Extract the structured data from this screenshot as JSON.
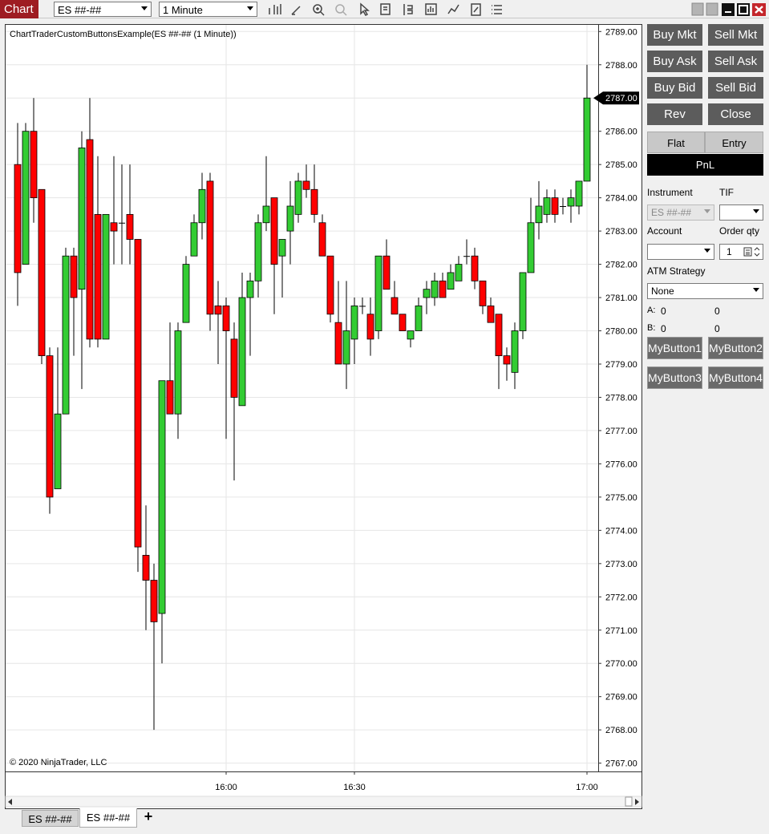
{
  "toolbar": {
    "title": "Chart",
    "instrument": "ES ##-##",
    "interval": "1 Minute"
  },
  "chart_data": {
    "type": "candlestick",
    "title": "ChartTraderCustomButtonsExample(ES ##-## (1 Minute))",
    "copyright": "© 2020 NinjaTrader, LLC",
    "categories": [
      null,
      null,
      null,
      null,
      null,
      null,
      null,
      null,
      null,
      null,
      null,
      null,
      null,
      null,
      null,
      null,
      null,
      null,
      null,
      null,
      null,
      null,
      null,
      null,
      null,
      null,
      "16:00",
      null,
      null,
      null,
      null,
      null,
      null,
      null,
      null,
      null,
      null,
      null,
      null,
      null,
      null,
      null,
      "16:30",
      null,
      null,
      null,
      null,
      null,
      null,
      null,
      null,
      null,
      null,
      null,
      null,
      null,
      null,
      null,
      null,
      null,
      null,
      null,
      null,
      null,
      null,
      null,
      null,
      null,
      null,
      null,
      null,
      "17:00"
    ],
    "open": [
      2785.0,
      2782.0,
      2786.0,
      2784.25,
      2779.25,
      2775.25,
      2777.5,
      2782.25,
      2781.25,
      2785.75,
      2783.5,
      2779.75,
      2783.25,
      2783.25,
      2783.5,
      2782.75,
      2773.25,
      2772.5,
      2771.5,
      2778.5,
      2777.5,
      2780.25,
      2782.25,
      2783.25,
      2784.5,
      2780.75,
      2780.75,
      2779.75,
      2777.75,
      2781.0,
      2781.5,
      2783.25,
      2784.0,
      2782.25,
      2783.0,
      2783.5,
      2784.5,
      2784.25,
      2783.25,
      2782.25,
      2780.25,
      2779.0,
      2779.75,
      2780.75,
      2780.5,
      2780.0,
      2782.25,
      2781.0,
      2780.5,
      2779.75,
      2780.0,
      2781.0,
      2781.0,
      2781.5,
      2781.25,
      2781.5,
      2782.25,
      2782.25,
      2781.5,
      2780.75,
      2780.5,
      2779.25,
      2778.75,
      2780.0,
      2781.75,
      2783.25,
      2783.5,
      2784.0,
      2783.75,
      2783.75,
      2783.75,
      2784.5
    ],
    "high": [
      2786.25,
      2786.25,
      2787.0,
      2784.25,
      2779.5,
      2779.5,
      2782.5,
      2782.5,
      2786.0,
      2787.0,
      2785.25,
      2783.5,
      2785.25,
      2785.0,
      2785.0,
      2782.75,
      2774.75,
      2773.0,
      2778.5,
      2780.25,
      2780.25,
      2782.25,
      2783.5,
      2784.75,
      2784.75,
      2781.5,
      2781.0,
      2780.25,
      2781.75,
      2781.75,
      2783.5,
      2785.25,
      2784.0,
      2782.75,
      2784.5,
      2784.75,
      2785.0,
      2785.0,
      2783.5,
      2782.25,
      2781.5,
      2781.5,
      2781.0,
      2781.0,
      2781.0,
      2782.25,
      2782.75,
      2781.5,
      2780.5,
      2780.0,
      2781.0,
      2781.5,
      2781.75,
      2781.75,
      2782.0,
      2782.25,
      2782.75,
      2782.5,
      2781.5,
      2781.0,
      2780.5,
      2779.5,
      2780.25,
      2781.75,
      2784.0,
      2784.5,
      2784.25,
      2784.25,
      2784.0,
      2784.25,
      2784.5,
      2788.0
    ],
    "low": [
      2780.75,
      2782.0,
      2783.25,
      2779.0,
      2774.5,
      2775.25,
      2777.5,
      2779.25,
      2778.25,
      2779.5,
      2779.5,
      2779.75,
      2782.0,
      2782.0,
      2782.0,
      2772.75,
      2771.0,
      2768.0,
      2770.0,
      2777.5,
      2776.75,
      2780.25,
      2782.25,
      2782.75,
      2780.0,
      2779.0,
      2776.75,
      2775.5,
      2777.75,
      2779.25,
      2781.0,
      2783.0,
      2780.5,
      2781.0,
      2782.0,
      2783.25,
      2784.0,
      2783.25,
      2782.25,
      2780.25,
      2779.0,
      2778.25,
      2779.0,
      2780.5,
      2779.25,
      2779.75,
      2781.25,
      2780.5,
      2780.0,
      2779.5,
      2780.0,
      2780.5,
      2780.75,
      2781.0,
      2781.25,
      2781.5,
      2782.0,
      2781.25,
      2780.5,
      2780.25,
      2778.25,
      2778.5,
      2778.25,
      2779.75,
      2781.75,
      2782.75,
      2783.25,
      2783.25,
      2783.5,
      2783.25,
      2783.5,
      2784.5
    ],
    "close": [
      2781.75,
      2786.0,
      2784.0,
      2779.25,
      2775.0,
      2777.5,
      2782.25,
      2781.0,
      2785.5,
      2779.75,
      2779.75,
      2783.5,
      2783.0,
      2783.25,
      2782.75,
      2773.5,
      2772.5,
      2771.25,
      2778.5,
      2777.5,
      2780.0,
      2782.0,
      2783.25,
      2784.25,
      2780.5,
      2780.5,
      2780.0,
      2778.0,
      2781.0,
      2781.5,
      2783.25,
      2783.75,
      2782.0,
      2782.75,
      2783.75,
      2784.5,
      2784.25,
      2783.5,
      2782.25,
      2780.5,
      2779.0,
      2780.0,
      2780.75,
      2780.75,
      2779.75,
      2782.25,
      2781.25,
      2780.5,
      2780.0,
      2780.0,
      2780.75,
      2781.25,
      2781.5,
      2781.0,
      2781.75,
      2782.0,
      2782.25,
      2781.5,
      2780.75,
      2780.25,
      2779.25,
      2779.0,
      2780.0,
      2781.75,
      2783.25,
      2783.75,
      2784.0,
      2783.5,
      2783.75,
      2784.0,
      2784.5,
      2787.0
    ],
    "ylim": [
      2766.75,
      2789.2
    ],
    "yticks": [
      {
        "value": 2767,
        "label": "2767.00"
      },
      {
        "value": 2768,
        "label": "2768.00"
      },
      {
        "value": 2769,
        "label": "2769.00"
      },
      {
        "value": 2770,
        "label": "2770.00"
      },
      {
        "value": 2771,
        "label": "2771.00"
      },
      {
        "value": 2772,
        "label": "2772.00"
      },
      {
        "value": 2773,
        "label": "2773.00"
      },
      {
        "value": 2774,
        "label": "2774.00"
      },
      {
        "value": 2775,
        "label": "2775.00"
      },
      {
        "value": 2776,
        "label": "2776.00"
      },
      {
        "value": 2777,
        "label": "2777.00"
      },
      {
        "value": 2778,
        "label": "2778.00"
      },
      {
        "value": 2779,
        "label": "2779.00"
      },
      {
        "value": 2780,
        "label": "2780.00"
      },
      {
        "value": 2781,
        "label": "2781.00"
      },
      {
        "value": 2782,
        "label": "2782.00"
      },
      {
        "value": 2783,
        "label": "2783.00"
      },
      {
        "value": 2784,
        "label": "2784.00"
      },
      {
        "value": 2785,
        "label": "2785.00"
      },
      {
        "value": 2786,
        "label": "2786.00"
      },
      {
        "value": 2787,
        "label": "2787.00"
      },
      {
        "value": 2788,
        "label": "2788.00"
      },
      {
        "value": 2789,
        "label": "2789.00"
      }
    ],
    "last_price": {
      "value": 2787,
      "label": "2787.00"
    },
    "up_color": "#33cc33",
    "down_color": "#ff0000",
    "grid": true
  },
  "chart_trader": {
    "buttons": [
      "Buy Mkt",
      "Sell Mkt",
      "Buy Ask",
      "Sell Ask",
      "Buy Bid",
      "Sell Bid",
      "Rev",
      "Close"
    ],
    "tabs": [
      "Flat",
      "Entry"
    ],
    "pnl": "PnL",
    "instrument_label": "Instrument",
    "tif_label": "TIF",
    "instrument_value": "ES ##-##",
    "account_label": "Account",
    "order_qty_label": "Order qty",
    "order_qty": 1,
    "atm_label": "ATM Strategy",
    "atm_value": "None",
    "a_label": "A:",
    "a_values": [
      0,
      0
    ],
    "b_label": "B:",
    "b_values": [
      0,
      0
    ],
    "custom_buttons": [
      "MyButton1",
      "MyButton2",
      "MyButton3",
      "MyButton4"
    ]
  },
  "tabs": [
    "ES ##-##",
    "ES ##-##",
    "+"
  ]
}
